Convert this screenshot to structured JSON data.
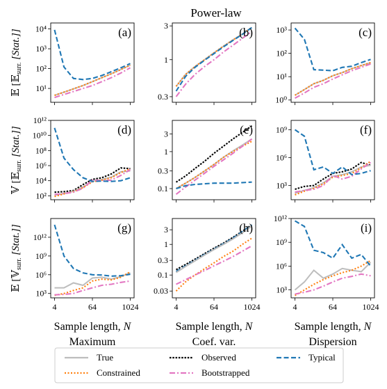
{
  "title": "Power-law",
  "x_ticks": [
    "4",
    "64",
    "1024"
  ],
  "row_ylabels": [
    {
      "pre": "𝔼 [𝔼",
      "sub": "surr.",
      "post": " [Stat.]]"
    },
    {
      "pre": "𝕍 [𝔼",
      "sub": "surr.",
      "post": " [Stat.]]"
    },
    {
      "pre": "𝔼 [𝕍",
      "sub": "surr.",
      "post": " [Stat.]]"
    }
  ],
  "xlabel": {
    "main": "Sample length, ",
    "var": "N"
  },
  "column_titles": [
    "Maximum",
    "Coef. var.",
    "Dispersion"
  ],
  "legend": [
    {
      "name": "True",
      "color": "#bdbdbd",
      "dash": "solid"
    },
    {
      "name": "Observed",
      "color": "#000000",
      "dash": "dotted-dense"
    },
    {
      "name": "Typical",
      "color": "#1f77b4",
      "dash": "dashed"
    },
    {
      "name": "Constrained",
      "color": "#ff7f0e",
      "dash": "dotted"
    },
    {
      "name": "Bootstrapped",
      "color": "#e377c2",
      "dash": "dashdot"
    }
  ],
  "chart_data": [
    {
      "panel": "(a)",
      "row": 0,
      "col": 0,
      "type": "line",
      "xscale": "log2",
      "yscale": "log10",
      "x": [
        4,
        8,
        16,
        32,
        64,
        128,
        256,
        512,
        1024
      ],
      "ylim": [
        2,
        20000
      ],
      "yticks": [
        {
          "v": 10,
          "l": "10¹"
        },
        {
          "v": 100,
          "l": "10²"
        },
        {
          "v": 1000,
          "l": "10³"
        },
        {
          "v": 10000,
          "l": "10⁴"
        }
      ],
      "series": [
        {
          "name": "True",
          "values": [
            4.5,
            6.5,
            9.5,
            14,
            22,
            35,
            55,
            90,
            150
          ]
        },
        {
          "name": "Constrained",
          "values": [
            4.5,
            6.5,
            9.5,
            14,
            22,
            35,
            55,
            90,
            150
          ]
        },
        {
          "name": "Bootstrapped",
          "values": [
            3.5,
            5,
            7,
            10,
            14,
            22,
            35,
            60,
            110
          ]
        },
        {
          "name": "Typical",
          "values": [
            9000,
            120,
            32,
            28,
            32,
            45,
            70,
            110,
            180
          ]
        }
      ]
    },
    {
      "panel": "(b)",
      "row": 0,
      "col": 1,
      "type": "line",
      "xscale": "log2",
      "yscale": "log10",
      "x": [
        4,
        8,
        16,
        32,
        64,
        128,
        256,
        512,
        1024
      ],
      "ylim": [
        0.25,
        3.3
      ],
      "yticks": [
        {
          "v": 0.3,
          "l": "0.3"
        },
        {
          "v": 1,
          "l": "1"
        },
        {
          "v": 3,
          "l": "3"
        }
      ],
      "series": [
        {
          "name": "True",
          "values": [
            0.42,
            0.62,
            0.8,
            1.0,
            1.25,
            1.55,
            1.9,
            2.3,
            2.85
          ]
        },
        {
          "name": "Constrained",
          "values": [
            0.42,
            0.62,
            0.8,
            1.0,
            1.25,
            1.55,
            1.9,
            2.3,
            2.85
          ]
        },
        {
          "name": "Typical",
          "values": [
            0.36,
            0.58,
            0.78,
            0.98,
            1.22,
            1.52,
            1.87,
            2.28,
            2.85
          ]
        },
        {
          "name": "Bootstrapped",
          "values": [
            0.3,
            0.45,
            0.62,
            0.8,
            1.0,
            1.28,
            1.6,
            2.0,
            2.5
          ]
        }
      ]
    },
    {
      "panel": "(c)",
      "row": 0,
      "col": 2,
      "type": "line",
      "xscale": "log2",
      "yscale": "log10",
      "x": [
        4,
        8,
        16,
        32,
        64,
        128,
        256,
        512,
        1024
      ],
      "ylim": [
        0.8,
        2000
      ],
      "yticks": [
        {
          "v": 1,
          "l": "10⁰"
        },
        {
          "v": 10,
          "l": "10¹"
        },
        {
          "v": 100,
          "l": "10²"
        },
        {
          "v": 1000,
          "l": "10³"
        }
      ],
      "series": [
        {
          "name": "True",
          "values": [
            1.6,
            2.8,
            5,
            7,
            11,
            15,
            22,
            30,
            40
          ]
        },
        {
          "name": "Constrained",
          "values": [
            1.6,
            2.8,
            5,
            7,
            11,
            15,
            22,
            30,
            40
          ]
        },
        {
          "name": "Bootstrapped",
          "values": [
            1.2,
            2.0,
            3.5,
            5,
            8,
            12,
            18,
            25,
            35
          ]
        },
        {
          "name": "Typical",
          "values": [
            1200,
            400,
            20,
            19,
            18,
            25,
            28,
            40,
            55
          ]
        }
      ]
    },
    {
      "panel": "(d)",
      "row": 1,
      "col": 0,
      "type": "line",
      "xscale": "log2",
      "yscale": "log10",
      "x": [
        4,
        8,
        16,
        32,
        64,
        128,
        256,
        512,
        1024
      ],
      "ylim": [
        30,
        1000000000000.0
      ],
      "yticks": [
        {
          "v": 100,
          "l": "10²"
        },
        {
          "v": 10000,
          "l": "10⁴"
        },
        {
          "v": 1000000,
          "l": "10⁶"
        },
        {
          "v": 100000000,
          "l": "10⁸"
        },
        {
          "v": 10000000000,
          "l": "10¹⁰"
        },
        {
          "v": 1000000000000,
          "l": "10¹²"
        }
      ],
      "series": [
        {
          "name": "Observed",
          "values": [
            300,
            350,
            500,
            3000,
            15000,
            25000,
            80000,
            500000,
            400000
          ]
        },
        {
          "name": "True",
          "values": [
            120,
            200,
            400,
            1500,
            8000,
            15000,
            30000,
            150000,
            200000
          ]
        },
        {
          "name": "Constrained",
          "values": [
            80,
            180,
            350,
            1200,
            7000,
            12000,
            25000,
            120000,
            400000
          ]
        },
        {
          "name": "Bootstrapped",
          "values": [
            150,
            200,
            300,
            1000,
            12000,
            10000,
            12000,
            50000,
            300000
          ]
        },
        {
          "name": "Typical",
          "values": [
            100000000000.0,
            10000000.0,
            300000,
            25000,
            8000,
            9000,
            8000,
            10000,
            25000
          ]
        }
      ]
    },
    {
      "panel": "(e)",
      "row": 1,
      "col": 1,
      "type": "line",
      "xscale": "log2",
      "yscale": "log10",
      "x": [
        4,
        8,
        16,
        32,
        64,
        128,
        256,
        512,
        1024
      ],
      "ylim": [
        0.05,
        7
      ],
      "yticks": [
        {
          "v": 0.1,
          "l": "0.1"
        },
        {
          "v": 0.3,
          "l": "0.3"
        },
        {
          "v": 1,
          "l": "1"
        },
        {
          "v": 3,
          "l": "3"
        }
      ],
      "series": [
        {
          "name": "Observed",
          "values": [
            0.15,
            0.22,
            0.35,
            0.55,
            0.9,
            1.4,
            2.2,
            3.3,
            5.0
          ]
        },
        {
          "name": "True",
          "values": [
            0.1,
            0.14,
            0.2,
            0.3,
            0.45,
            0.7,
            1.05,
            1.5,
            2.2
          ]
        },
        {
          "name": "Constrained",
          "values": [
            0.1,
            0.14,
            0.2,
            0.3,
            0.45,
            0.7,
            1.0,
            1.4,
            1.9
          ]
        },
        {
          "name": "Bootstrapped",
          "values": [
            0.07,
            0.11,
            0.17,
            0.26,
            0.4,
            0.6,
            0.9,
            1.4,
            2.2
          ]
        },
        {
          "name": "Typical",
          "values": [
            0.1,
            0.12,
            0.13,
            0.135,
            0.14,
            0.14,
            0.14,
            0.145,
            0.15
          ]
        }
      ]
    },
    {
      "panel": "(f)",
      "row": 1,
      "col": 2,
      "type": "line",
      "xscale": "log2",
      "yscale": "log10",
      "x": [
        4,
        8,
        16,
        32,
        64,
        128,
        256,
        512,
        1024
      ],
      "ylim": [
        30,
        10000000000.0
      ],
      "yticks": [
        {
          "v": 1000,
          "l": "10³"
        },
        {
          "v": 1000000,
          "l": "10⁶"
        },
        {
          "v": 1000000000,
          "l": "10⁹"
        }
      ],
      "series": [
        {
          "name": "Observed",
          "values": [
            400,
            800,
            1000,
            5000,
            20000,
            30000,
            60000,
            300000,
            150000
          ]
        },
        {
          "name": "True",
          "values": [
            150,
            300,
            600,
            2000,
            10000,
            15000,
            30000,
            100000,
            150000
          ]
        },
        {
          "name": "Constrained",
          "values": [
            100,
            250,
            500,
            1500,
            8000,
            12000,
            20000,
            80000,
            400000
          ]
        },
        {
          "name": "Bootstrapped",
          "values": [
            200,
            300,
            400,
            1000,
            12000,
            5000,
            10000,
            60000,
            300000
          ]
        },
        {
          "name": "Typical",
          "values": [
            1000000000.0,
            200000000.0,
            50000,
            100000,
            20000,
            100000,
            15000,
            20000,
            40000
          ]
        }
      ]
    },
    {
      "panel": "(g)",
      "row": 2,
      "col": 0,
      "type": "line",
      "xscale": "log2",
      "yscale": "log10",
      "x": [
        4,
        8,
        16,
        32,
        64,
        128,
        256,
        512,
        1024
      ],
      "ylim": [
        200,
        1000000000000000.0
      ],
      "yticks": [
        {
          "v": 1000,
          "l": "10³"
        },
        {
          "v": 1000000,
          "l": "10⁶"
        },
        {
          "v": 1000000000,
          "l": "10⁹"
        },
        {
          "v": 1000000000000,
          "l": "10¹²"
        }
      ],
      "series": [
        {
          "name": "True",
          "values": [
            8000,
            8000,
            50000,
            20000,
            300000,
            400000,
            200000,
            500000,
            2000000
          ]
        },
        {
          "name": "Constrained",
          "values": [
            500,
            1000,
            3000,
            8000,
            100000,
            200000,
            150000,
            400000,
            3000000
          ]
        },
        {
          "name": "Bootstrapped",
          "values": [
            600,
            700,
            1000,
            3000,
            8000,
            20000,
            30000,
            60000,
            100000
          ]
        },
        {
          "name": "Typical",
          "values": [
            100000000000000.0,
            1000000000.0,
            10000000.0,
            2000000,
            1000000,
            900000,
            600000,
            700000,
            1200000
          ]
        }
      ]
    },
    {
      "panel": "(h)",
      "row": 2,
      "col": 1,
      "type": "line",
      "xscale": "log2",
      "yscale": "log10",
      "x": [
        4,
        8,
        16,
        32,
        64,
        128,
        256,
        512,
        1024
      ],
      "ylim": [
        0.018,
        7
      ],
      "yticks": [
        {
          "v": 0.03,
          "l": "0.03"
        },
        {
          "v": 0.1,
          "l": "0.1"
        },
        {
          "v": 0.3,
          "l": "0.3"
        },
        {
          "v": 1,
          "l": "1"
        },
        {
          "v": 3,
          "l": "3"
        }
      ],
      "series": [
        {
          "name": "Observed",
          "values": [
            0.15,
            0.22,
            0.33,
            0.5,
            0.75,
            1.1,
            1.7,
            2.7,
            4.3
          ]
        },
        {
          "name": "Typical",
          "values": [
            0.13,
            0.2,
            0.3,
            0.47,
            0.7,
            1.05,
            1.6,
            2.6,
            4.3
          ]
        },
        {
          "name": "True",
          "values": [
            0.12,
            0.19,
            0.29,
            0.45,
            0.68,
            1.0,
            1.5,
            2.4,
            4.0
          ]
        },
        {
          "name": "Constrained",
          "values": [
            0.03,
            0.06,
            0.1,
            0.16,
            0.25,
            0.4,
            0.6,
            1.0,
            1.6
          ]
        },
        {
          "name": "Bootstrapped",
          "values": [
            0.05,
            0.07,
            0.1,
            0.14,
            0.2,
            0.28,
            0.4,
            0.6,
            0.9
          ]
        }
      ]
    },
    {
      "panel": "(i)",
      "row": 2,
      "col": 2,
      "type": "line",
      "xscale": "log2",
      "yscale": "log10",
      "x": [
        4,
        8,
        16,
        32,
        64,
        128,
        256,
        512,
        1024
      ],
      "ylim": [
        100,
        1000000000000.0
      ],
      "yticks": [
        {
          "v": 1000,
          "l": "10³"
        },
        {
          "v": 1000000,
          "l": "10⁶"
        },
        {
          "v": 1000000000,
          "l": "10⁹"
        },
        {
          "v": 1000000000000,
          "l": "10¹²"
        }
      ],
      "series": [
        {
          "name": "True",
          "values": [
            1000,
            10000,
            300000,
            30000,
            100000,
            500000,
            300000,
            200000,
            3000000
          ]
        },
        {
          "name": "Constrained",
          "values": [
            200,
            1000,
            5000,
            20000,
            60000,
            150000,
            300000,
            1000000,
            5000000
          ]
        },
        {
          "name": "Bootstrapped",
          "values": [
            300,
            500,
            1000,
            3000,
            10000,
            30000,
            50000,
            100000,
            60000
          ]
        },
        {
          "name": "Typical",
          "values": [
            500000000000.0,
            100000000000.0,
            100000000.0,
            50000000.0,
            10000000.0,
            500000000.0,
            10000000.0,
            30000000.0,
            1000000.0
          ]
        }
      ]
    }
  ]
}
